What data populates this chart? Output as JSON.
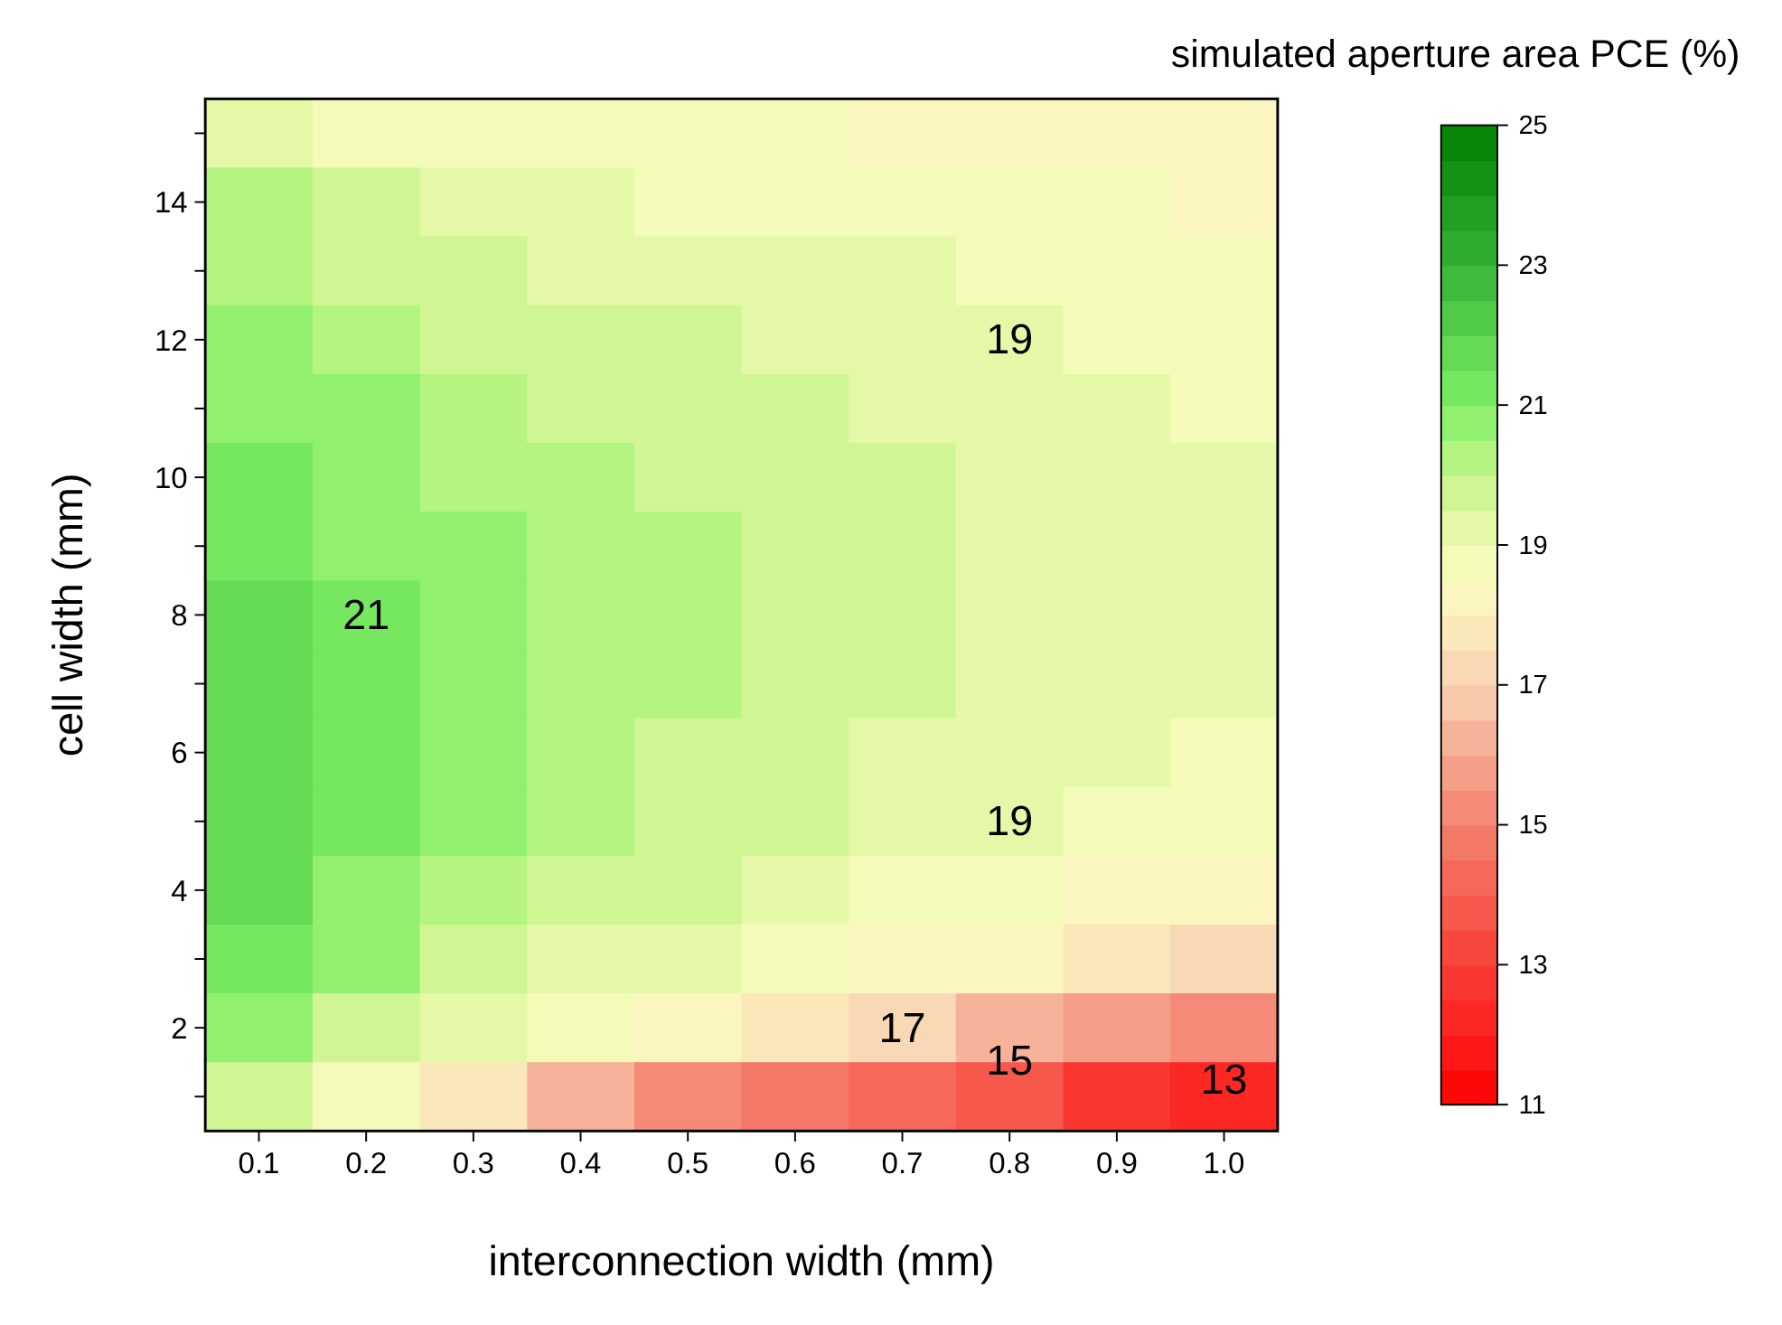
{
  "chart_data": {
    "type": "heatmap",
    "xlabel": "interconnection width (mm)",
    "ylabel": "cell width (mm)",
    "clabel": "simulated aperture area PCE (%)",
    "categories": [
      "0.1",
      "0.2",
      "0.3",
      "0.4",
      "0.5",
      "0.6",
      "0.7",
      "0.8",
      "0.9",
      "1.0"
    ],
    "y_categories": [
      null,
      "14",
      null,
      "12",
      null,
      "10",
      null,
      "8",
      null,
      "6",
      null,
      "4",
      null,
      "2",
      null
    ],
    "cells": [
      [
        19.1,
        18.9,
        18.8,
        18.7,
        18.6,
        18.5,
        18.4,
        18.3,
        18.2,
        18.1
      ],
      [
        20.0,
        19.5,
        19.2,
        19.0,
        18.9,
        18.8,
        18.7,
        18.6,
        18.5,
        18.4
      ],
      [
        20.3,
        19.9,
        19.6,
        19.4,
        19.2,
        19.1,
        19.0,
        18.9,
        18.8,
        18.7
      ],
      [
        20.6,
        20.2,
        19.9,
        19.7,
        19.5,
        19.3,
        19.2,
        19.0,
        18.9,
        18.8
      ],
      [
        20.9,
        20.5,
        20.2,
        19.9,
        19.7,
        19.5,
        19.4,
        19.2,
        19.1,
        18.9
      ],
      [
        21.1,
        20.7,
        20.4,
        20.1,
        19.9,
        19.7,
        19.5,
        19.4,
        19.2,
        19.1
      ],
      [
        21.3,
        20.9,
        20.5,
        20.3,
        20.0,
        19.8,
        19.6,
        19.4,
        19.3,
        19.1
      ],
      [
        21.5,
        21.0,
        20.6,
        20.3,
        20.0,
        19.8,
        19.6,
        19.4,
        19.2,
        19.1
      ],
      [
        21.6,
        21.1,
        20.7,
        20.3,
        20.0,
        19.8,
        19.5,
        19.3,
        19.1,
        19.0
      ],
      [
        21.7,
        21.1,
        20.6,
        20.2,
        19.9,
        19.6,
        19.4,
        19.2,
        19.0,
        18.8
      ],
      [
        21.7,
        21.1,
        20.6,
        20.1,
        19.8,
        19.5,
        19.2,
        19.0,
        18.8,
        18.6
      ],
      [
        21.6,
        20.9,
        20.4,
        19.9,
        19.5,
        19.2,
        18.9,
        18.6,
        18.4,
        18.2
      ],
      [
        21.3,
        20.5,
        19.9,
        19.4,
        19.0,
        18.6,
        18.3,
        18.0,
        17.7,
        17.4
      ],
      [
        20.8,
        19.8,
        19.1,
        18.5,
        18.0,
        17.5,
        17.0,
        16.4,
        15.8,
        15.1
      ],
      [
        19.6,
        18.9,
        17.8,
        16.4,
        15.1,
        14.5,
        14.0,
        13.5,
        12.9,
        12.3
      ]
    ],
    "clim": [
      11,
      25
    ],
    "cticks": [
      11,
      13,
      15,
      17,
      19,
      21,
      23,
      25
    ],
    "annotations": [
      "19",
      "19",
      "21",
      "17",
      "15",
      "13"
    ]
  }
}
